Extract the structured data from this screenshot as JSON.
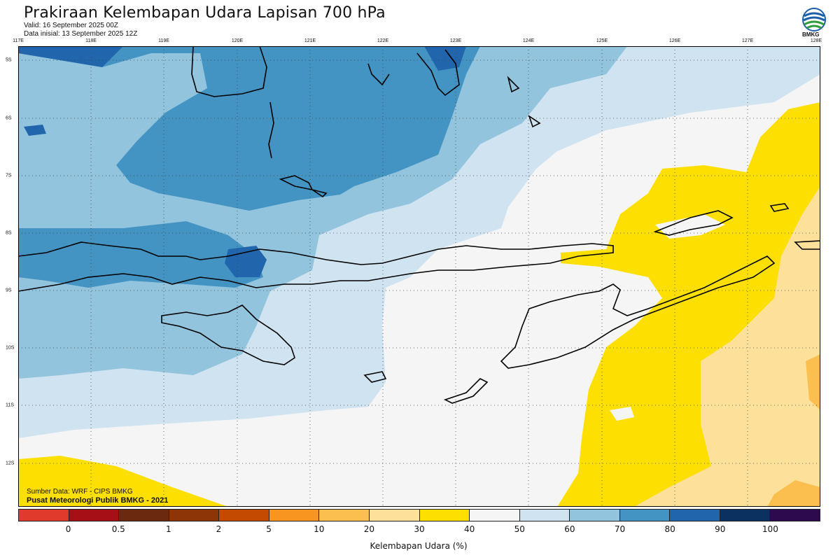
{
  "header": {
    "title": "Prakiraan Kelembapan Udara Lapisan 700 hPa",
    "valid": "Valid: 16 September 2025 00Z",
    "init": "Data inisial: 13 September 2025 12Z",
    "logo_text": "BMKG"
  },
  "axes": {
    "lon_labels": [
      "117E",
      "118E",
      "119E",
      "120E",
      "121E",
      "122E",
      "123E",
      "124E",
      "125E",
      "126E",
      "127E",
      "128E"
    ],
    "lat_labels": [
      "5S",
      "6S",
      "7S",
      "8S",
      "9S",
      "10S",
      "11S",
      "12S"
    ]
  },
  "footer": {
    "source": "Sumber Data: WRF - CIPS BMKG",
    "org": "Pusat Meteorologi Publik BMKG - 2021"
  },
  "colorbar": {
    "colors": [
      "#e03a2d",
      "#a50f15",
      "#6b2a10",
      "#8e3508",
      "#c44a02",
      "#f89521",
      "#fbbf4f",
      "#fde19a",
      "#fde001",
      "#f5f5f5",
      "#d0e3f0",
      "#92c4de",
      "#4393c3",
      "#2166ac",
      "#0b3160",
      "#2d0a4e"
    ],
    "ticks": [
      "0",
      "0.5",
      "1",
      "2",
      "5",
      "10",
      "20",
      "30",
      "40",
      "50",
      "60",
      "70",
      "80",
      "90",
      "100"
    ],
    "label": "Kelembapan Udara (%)"
  },
  "palette": {
    "c40_50": "#f5f5f5",
    "c50_60": "#d0e3f0",
    "c60_70": "#92c4de",
    "c70_80": "#4393c3",
    "c80_90": "#2166ac",
    "c30_40": "#fde001",
    "c20_30": "#fde19a",
    "c10_20": "#fbbf4f"
  }
}
